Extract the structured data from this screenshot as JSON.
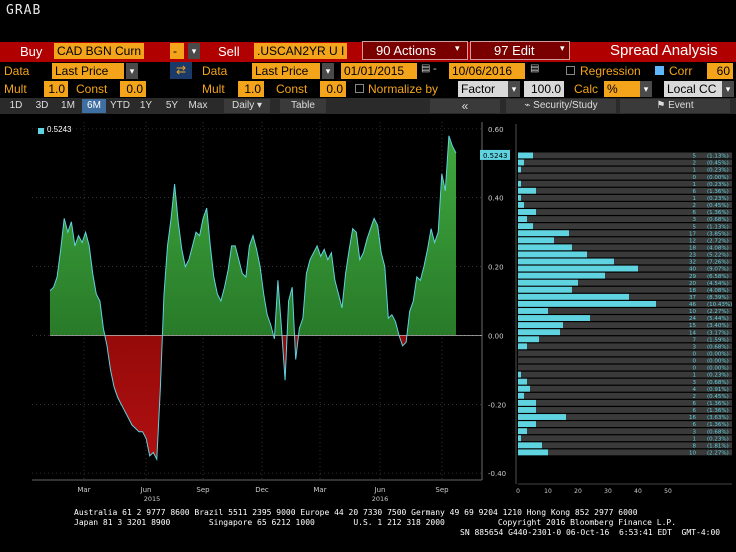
{
  "window": {
    "title": "GRAB"
  },
  "toolbar1": {
    "buy_label": "Buy",
    "buy_ticker": "CAD BGN Curn",
    "minus_label": "-",
    "sell_label": "Sell",
    "sell_ticker": ".USCAN2YR U I",
    "actions_label": "90 Actions",
    "edit_label": "97 Edit",
    "title": "Spread Analysis"
  },
  "toolbar2": {
    "data_label": "Data",
    "data_value": "Last Price",
    "data2_label": "Data",
    "data2_value": "Last Price",
    "start_date": "01/01/2015",
    "end_date": "10/06/2016",
    "regression_label": "Regression",
    "corr_label": "Corr",
    "corr_value": "60"
  },
  "toolbar3": {
    "mult_label": "Mult",
    "mult_value": "1.0",
    "const_label": "Const",
    "const_value": "0.0",
    "mult2_label": "Mult",
    "mult2_value": "1.0",
    "const2_label": "Const",
    "const2_value": "0.0",
    "normalize_label": "Normalize by",
    "factor_value": "Factor",
    "factor_num": "100.0",
    "calc_label": "Calc",
    "calc_value": "%",
    "ccy_value": "Local CC"
  },
  "toolbar4": {
    "ranges": [
      "1D",
      "3D",
      "1M",
      "6M",
      "YTD",
      "1Y",
      "5Y",
      "Max"
    ],
    "active_range": "6M",
    "period": "Daily",
    "table_label": "Table",
    "security_label": "Security/Study",
    "event_label": "Event"
  },
  "chart_data": {
    "type": "area",
    "legend": "0.5243",
    "last_value": "0.5243",
    "ylim": [
      -0.42,
      0.62
    ],
    "yticks": [
      "0.60",
      "0.40",
      "0.20",
      "0.00",
      "-0.20",
      "-0.40"
    ],
    "xticks": [
      "Mar",
      "Jun",
      "Sep",
      "Dec",
      "Mar",
      "Jun",
      "Sep"
    ],
    "xyears": [
      "2015",
      "2016"
    ],
    "colors": {
      "positive": "#1f7a1f",
      "negative": "#8b0000",
      "line": "#5fd3e0"
    },
    "series": [
      {
        "values": [
          0.13,
          0.14,
          0.17,
          0.25,
          0.34,
          0.3,
          0.33,
          0.26,
          0.29,
          0.27,
          0.3,
          0.26,
          0.18,
          0.12,
          0.1,
          0.02,
          -0.03,
          -0.1,
          -0.15,
          -0.18,
          -0.2,
          -0.22,
          -0.24,
          -0.26,
          -0.27,
          -0.28,
          -0.28,
          -0.3,
          -0.35,
          -0.34,
          -0.36,
          -0.15,
          0.12,
          0.26,
          0.34,
          0.44,
          0.33,
          0.25,
          0.2,
          0.22,
          0.26,
          0.3,
          0.29,
          0.34,
          0.37,
          0.26,
          0.17,
          0.12,
          0.1,
          0.14,
          0.19,
          0.26,
          0.26,
          0.22,
          0.18,
          0.17,
          0.26,
          0.29,
          0.25,
          0.2,
          0.12,
          0.06,
          0.03,
          -0.01,
          0.16,
          0.02,
          -0.13,
          0.1,
          0.14,
          -0.07,
          0.02,
          0.05,
          0.18,
          0.22,
          0.24,
          0.26,
          0.23,
          0.25,
          0.22,
          0.24,
          0.16,
          0.12,
          0.08,
          0.18,
          0.25,
          0.31,
          0.3,
          0.22,
          0.24,
          0.28,
          0.31,
          0.34,
          0.32,
          0.24,
          0.2,
          0.05,
          0.06,
          0.04,
          0.0,
          -0.03,
          -0.02,
          0.07,
          0.1,
          0.17,
          0.16,
          0.2,
          0.25,
          0.31,
          0.27,
          0.3,
          0.47,
          0.42,
          0.58,
          0.55,
          0.53
        ]
      }
    ]
  },
  "histogram": {
    "xticks": [
      "0",
      "10",
      "20",
      "30",
      "40",
      "50"
    ],
    "bins": [
      {
        "count": "5",
        "pct": "(1.13%)"
      },
      {
        "count": "2",
        "pct": "(0.45%)"
      },
      {
        "count": "1",
        "pct": "(0.23%)"
      },
      {
        "count": "0",
        "pct": "(0.00%)"
      },
      {
        "count": "1",
        "pct": "(0.23%)"
      },
      {
        "count": "6",
        "pct": "(1.36%)"
      },
      {
        "count": "1",
        "pct": "(0.23%)"
      },
      {
        "count": "2",
        "pct": "(0.45%)"
      },
      {
        "count": "6",
        "pct": "(1.36%)"
      },
      {
        "count": "3",
        "pct": "(0.68%)"
      },
      {
        "count": "5",
        "pct": "(1.13%)"
      },
      {
        "count": "17",
        "pct": "(3.85%)"
      },
      {
        "count": "12",
        "pct": "(2.72%)"
      },
      {
        "count": "18",
        "pct": "(4.08%)"
      },
      {
        "count": "23",
        "pct": "(5.22%)"
      },
      {
        "count": "32",
        "pct": "(7.26%)"
      },
      {
        "count": "40",
        "pct": "(9.07%)"
      },
      {
        "count": "29",
        "pct": "(6.58%)"
      },
      {
        "count": "20",
        "pct": "(4.54%)"
      },
      {
        "count": "18",
        "pct": "(4.08%)"
      },
      {
        "count": "37",
        "pct": "(8.39%)"
      },
      {
        "count": "46",
        "pct": "(10.43%)"
      },
      {
        "count": "10",
        "pct": "(2.27%)"
      },
      {
        "count": "24",
        "pct": "(5.44%)"
      },
      {
        "count": "15",
        "pct": "(3.40%)"
      },
      {
        "count": "14",
        "pct": "(3.17%)"
      },
      {
        "count": "7",
        "pct": "(1.59%)"
      },
      {
        "count": "3",
        "pct": "(0.68%)"
      },
      {
        "count": "0",
        "pct": "(0.00%)"
      },
      {
        "count": "0",
        "pct": "(0.00%)"
      },
      {
        "count": "0",
        "pct": "(0.00%)"
      },
      {
        "count": "1",
        "pct": "(0.23%)"
      },
      {
        "count": "3",
        "pct": "(0.68%)"
      },
      {
        "count": "4",
        "pct": "(0.91%)"
      },
      {
        "count": "2",
        "pct": "(0.45%)"
      },
      {
        "count": "6",
        "pct": "(1.36%)"
      },
      {
        "count": "6",
        "pct": "(1.36%)"
      },
      {
        "count": "16",
        "pct": "(3.63%)"
      },
      {
        "count": "6",
        "pct": "(1.36%)"
      },
      {
        "count": "3",
        "pct": "(0.68%)"
      },
      {
        "count": "1",
        "pct": "(0.23%)"
      },
      {
        "count": "8",
        "pct": "(1.81%)"
      },
      {
        "count": "10",
        "pct": "(2.27%)"
      }
    ]
  },
  "footer": {
    "line1": "Australia 61 2 9777 8600 Brazil 5511 2395 9000 Europe 44 20 7330 7500 Germany 49 69 9204 1210 Hong Kong 852 2977 6000",
    "line2": "Japan 81 3 3201 8900        Singapore 65 6212 1000        U.S. 1 212 318 2000           Copyright 2016 Bloomberg Finance L.P.",
    "line3": "SN 885654 G440-2301-0 06-Oct-16  6:53:41 EDT  GMT-4:00"
  }
}
